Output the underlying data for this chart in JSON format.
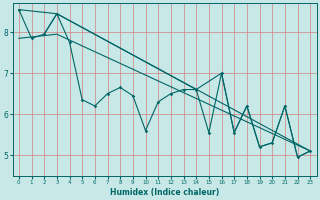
{
  "xlabel": "Humidex (Indice chaleur)",
  "bg_color": "#c8e8e8",
  "line_color": "#006666",
  "grid_color": "#d08080",
  "xlim": [
    -0.5,
    23.5
  ],
  "ylim": [
    4.5,
    8.7
  ],
  "xticks": [
    0,
    1,
    2,
    3,
    4,
    5,
    6,
    7,
    8,
    9,
    10,
    11,
    12,
    13,
    14,
    15,
    16,
    17,
    18,
    19,
    20,
    21,
    22,
    23
  ],
  "yticks": [
    5,
    6,
    7,
    8
  ],
  "series": [
    [
      0,
      8.55
    ],
    [
      1,
      7.85
    ],
    [
      2,
      7.95
    ],
    [
      3,
      8.45
    ],
    [
      4,
      7.75
    ],
    [
      5,
      6.35
    ],
    [
      6,
      6.2
    ],
    [
      7,
      6.5
    ],
    [
      8,
      6.65
    ],
    [
      9,
      6.45
    ],
    [
      10,
      5.6
    ],
    [
      11,
      6.3
    ],
    [
      12,
      6.5
    ],
    [
      13,
      6.6
    ],
    [
      14,
      6.6
    ],
    [
      15,
      5.55
    ],
    [
      16,
      7.0
    ],
    [
      17,
      5.55
    ],
    [
      18,
      6.2
    ],
    [
      19,
      5.2
    ],
    [
      20,
      5.3
    ],
    [
      21,
      6.2
    ],
    [
      22,
      4.95
    ],
    [
      23,
      5.1
    ]
  ],
  "line_upper": [
    [
      0,
      8.55
    ],
    [
      3,
      8.45
    ],
    [
      23,
      5.1
    ]
  ],
  "line_mid": [
    [
      0,
      7.85
    ],
    [
      3,
      7.95
    ],
    [
      23,
      5.1
    ]
  ],
  "line_lower": [
    [
      2,
      7.95
    ],
    [
      3,
      8.45
    ],
    [
      14,
      6.6
    ],
    [
      16,
      7.0
    ],
    [
      17,
      5.55
    ],
    [
      18,
      6.2
    ],
    [
      19,
      5.2
    ],
    [
      20,
      5.3
    ],
    [
      21,
      6.2
    ],
    [
      22,
      4.95
    ],
    [
      23,
      5.1
    ]
  ]
}
